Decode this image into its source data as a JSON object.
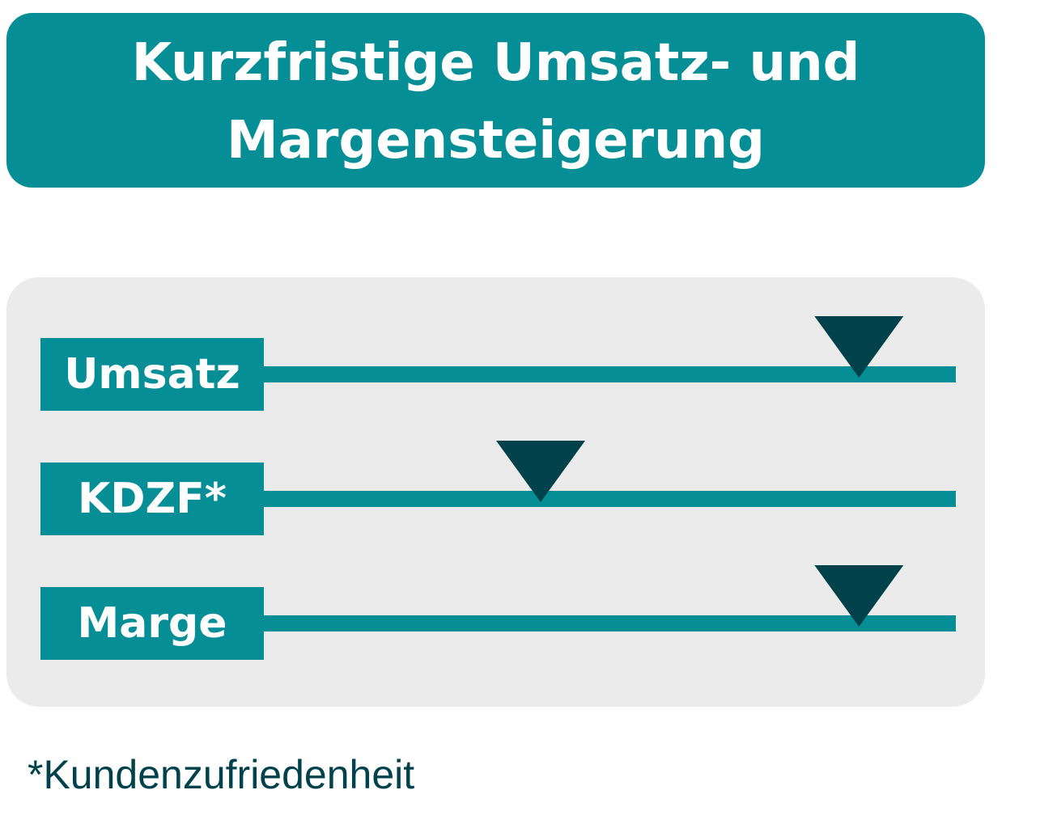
{
  "title_lines": [
    "Kurzfristige Umsatz- und",
    "Margensteigerung"
  ],
  "rows": [
    {
      "label": "Umsatz",
      "level": 0.86
    },
    {
      "label": "KDZF*",
      "level": 0.4
    },
    {
      "label": "Marge",
      "level": 0.86
    }
  ],
  "footnote": "*Kundenzufriedenheit",
  "colors": {
    "teal": "#058e96",
    "marker": "#00424c",
    "panel": "#ebebeb",
    "footnote_text": "#00424c"
  }
}
